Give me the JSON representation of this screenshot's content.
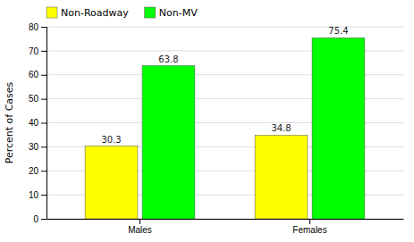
{
  "chart_data": {
    "type": "bar",
    "ylabel": "Percent of Cases",
    "categories": [
      "Males",
      "Females"
    ],
    "series": [
      {
        "name": "Non-Roadway",
        "color": "#FFFF00",
        "values": [
          30.3,
          34.8
        ]
      },
      {
        "name": "Non-MV",
        "color": "#00FF00",
        "values": [
          63.8,
          75.4
        ]
      }
    ],
    "ylim": [
      0,
      80
    ],
    "yticks": [
      0,
      10,
      20,
      30,
      40,
      50,
      60,
      70,
      80
    ],
    "grid": true,
    "legend": "upper left",
    "data_labels": true
  }
}
